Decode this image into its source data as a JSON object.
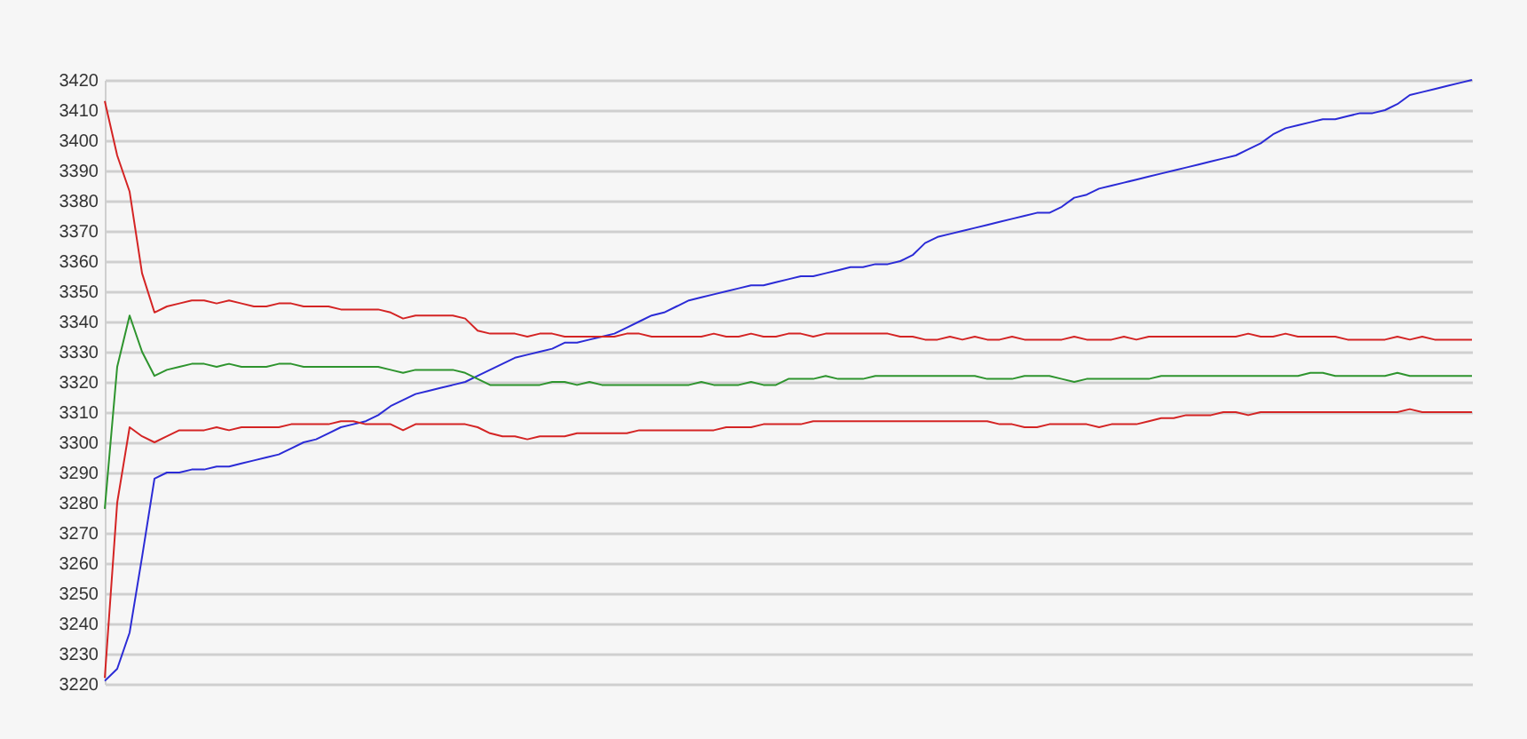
{
  "chart_data": {
    "type": "line",
    "categories": [
      null,
      null,
      null,
      null,
      null,
      null,
      null,
      null,
      null,
      null,
      null,
      null,
      null,
      null,
      null,
      null,
      null,
      null,
      null,
      null,
      null,
      null,
      null,
      null,
      null,
      null,
      null,
      null,
      null,
      null,
      null,
      null,
      null,
      null,
      null,
      null,
      null,
      null,
      null,
      null,
      null,
      null,
      null,
      null,
      null,
      null,
      null,
      null,
      null,
      null,
      null,
      null,
      null,
      null,
      null,
      null,
      null,
      null,
      null,
      null,
      null,
      null,
      null,
      null,
      null,
      null,
      null,
      null,
      null,
      null,
      null,
      null,
      null,
      null,
      null,
      null,
      null,
      null,
      null,
      null,
      null,
      null,
      null,
      null,
      null,
      null,
      null,
      null,
      null,
      null,
      null,
      null,
      null,
      null,
      null,
      null,
      null,
      null,
      null,
      null,
      null,
      null,
      null,
      null,
      null,
      null,
      null,
      null,
      null,
      null,
      null
    ],
    "series": [
      {
        "color": "#2b2bd6",
        "values": [
          3221,
          3225,
          3237,
          3262,
          3288,
          3290,
          3290,
          3291,
          3291,
          3292,
          3292,
          3293,
          3294,
          3295,
          3296,
          3298,
          3300,
          3301,
          3303,
          3305,
          3306,
          3307,
          3309,
          3312,
          3314,
          3316,
          3317,
          3318,
          3319,
          3320,
          3322,
          3324,
          3326,
          3328,
          3329,
          3330,
          3331,
          3333,
          3333,
          3334,
          3335,
          3336,
          3338,
          3340,
          3342,
          3343,
          3345,
          3347,
          3348,
          3349,
          3350,
          3351,
          3352,
          3352,
          3353,
          3354,
          3355,
          3355,
          3356,
          3357,
          3358,
          3358,
          3359,
          3359,
          3360,
          3362,
          3366,
          3368,
          3369,
          3370,
          3371,
          3372,
          3373,
          3374,
          3375,
          3376,
          3376,
          3378,
          3381,
          3382,
          3384,
          3385,
          3386,
          3387,
          3388,
          3389,
          3390,
          3391,
          3392,
          3393,
          3394,
          3395,
          3397,
          3399,
          3402,
          3404,
          3405,
          3406,
          3407,
          3407,
          3408,
          3409,
          3409,
          3410,
          3412,
          3415,
          3416,
          3417,
          3418,
          3419,
          3420
        ]
      },
      {
        "color": "#d42424",
        "values": [
          3413,
          3395,
          3383,
          3356,
          3343,
          3345,
          3346,
          3347,
          3347,
          3346,
          3347,
          3346,
          3345,
          3345,
          3346,
          3346,
          3345,
          3345,
          3345,
          3344,
          3344,
          3344,
          3344,
          3343,
          3341,
          3342,
          3342,
          3342,
          3342,
          3341,
          3337,
          3336,
          3336,
          3336,
          3335,
          3336,
          3336,
          3335,
          3335,
          3335,
          3335,
          3335,
          3336,
          3336,
          3335,
          3335,
          3335,
          3335,
          3335,
          3336,
          3335,
          3335,
          3336,
          3335,
          3335,
          3336,
          3336,
          3335,
          3336,
          3336,
          3336,
          3336,
          3336,
          3336,
          3335,
          3335,
          3334,
          3334,
          3335,
          3334,
          3335,
          3334,
          3334,
          3335,
          3334,
          3334,
          3334,
          3334,
          3335,
          3334,
          3334,
          3334,
          3335,
          3334,
          3335,
          3335,
          3335,
          3335,
          3335,
          3335,
          3335,
          3335,
          3336,
          3335,
          3335,
          3336,
          3335,
          3335,
          3335,
          3335,
          3334,
          3334,
          3334,
          3334,
          3335,
          3334,
          3335,
          3334,
          3334,
          3334,
          3334
        ]
      },
      {
        "color": "#2e942e",
        "values": [
          3278,
          3325,
          3342,
          3330,
          3322,
          3324,
          3325,
          3326,
          3326,
          3325,
          3326,
          3325,
          3325,
          3325,
          3326,
          3326,
          3325,
          3325,
          3325,
          3325,
          3325,
          3325,
          3325,
          3324,
          3323,
          3324,
          3324,
          3324,
          3324,
          3323,
          3321,
          3319,
          3319,
          3319,
          3319,
          3319,
          3320,
          3320,
          3319,
          3320,
          3319,
          3319,
          3319,
          3319,
          3319,
          3319,
          3319,
          3319,
          3320,
          3319,
          3319,
          3319,
          3320,
          3319,
          3319,
          3321,
          3321,
          3321,
          3322,
          3321,
          3321,
          3321,
          3322,
          3322,
          3322,
          3322,
          3322,
          3322,
          3322,
          3322,
          3322,
          3321,
          3321,
          3321,
          3322,
          3322,
          3322,
          3321,
          3320,
          3321,
          3321,
          3321,
          3321,
          3321,
          3321,
          3322,
          3322,
          3322,
          3322,
          3322,
          3322,
          3322,
          3322,
          3322,
          3322,
          3322,
          3322,
          3323,
          3323,
          3322,
          3322,
          3322,
          3322,
          3322,
          3323,
          3322,
          3322,
          3322,
          3322,
          3322,
          3322
        ]
      },
      {
        "color": "#d42424",
        "values": [
          3222,
          3280,
          3305,
          3302,
          3300,
          3302,
          3304,
          3304,
          3304,
          3305,
          3304,
          3305,
          3305,
          3305,
          3305,
          3306,
          3306,
          3306,
          3306,
          3307,
          3307,
          3306,
          3306,
          3306,
          3304,
          3306,
          3306,
          3306,
          3306,
          3306,
          3305,
          3303,
          3302,
          3302,
          3301,
          3302,
          3302,
          3302,
          3303,
          3303,
          3303,
          3303,
          3303,
          3304,
          3304,
          3304,
          3304,
          3304,
          3304,
          3304,
          3305,
          3305,
          3305,
          3306,
          3306,
          3306,
          3306,
          3307,
          3307,
          3307,
          3307,
          3307,
          3307,
          3307,
          3307,
          3307,
          3307,
          3307,
          3307,
          3307,
          3307,
          3307,
          3306,
          3306,
          3305,
          3305,
          3306,
          3306,
          3306,
          3306,
          3305,
          3306,
          3306,
          3306,
          3307,
          3308,
          3308,
          3309,
          3309,
          3309,
          3310,
          3310,
          3309,
          3310,
          3310,
          3310,
          3310,
          3310,
          3310,
          3310,
          3310,
          3310,
          3310,
          3310,
          3310,
          3311,
          3310,
          3310,
          3310,
          3310,
          3310
        ]
      }
    ],
    "ylim": [
      3220,
      3420
    ],
    "yticks": [
      3220,
      3230,
      3240,
      3250,
      3260,
      3270,
      3280,
      3290,
      3300,
      3310,
      3320,
      3330,
      3340,
      3350,
      3360,
      3370,
      3380,
      3390,
      3400,
      3410,
      3420
    ],
    "grid": "y",
    "tick_labels": "y"
  }
}
